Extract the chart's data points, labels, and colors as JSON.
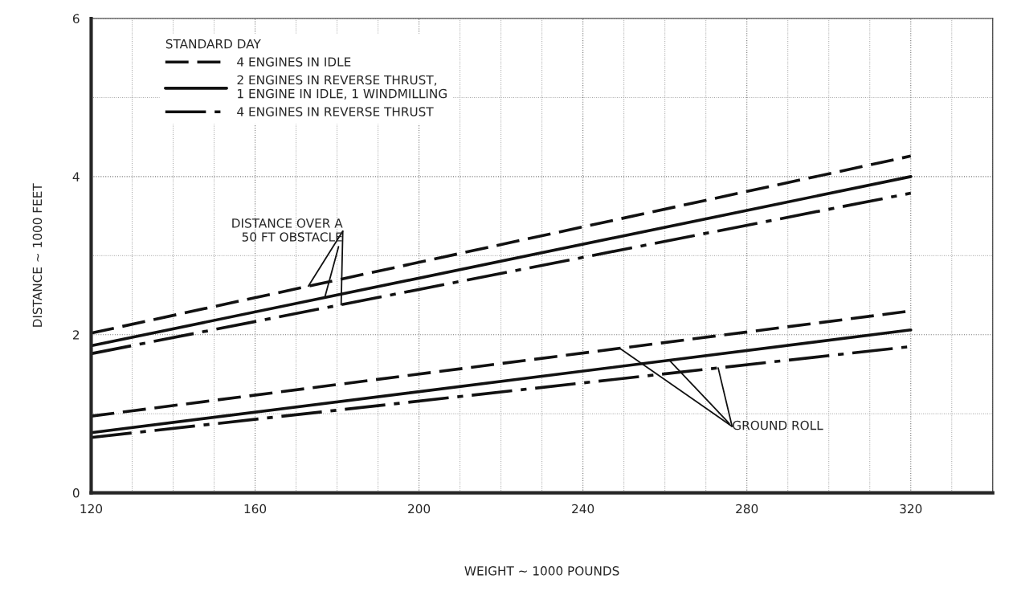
{
  "chart_data": {
    "type": "line",
    "xlabel": "WEIGHT ~ 1000 POUNDS",
    "ylabel": "DISTANCE ~ 1000 FEET",
    "legend_title": "STANDARD DAY",
    "xlim": [
      120,
      340
    ],
    "xticks": [
      120,
      160,
      200,
      240,
      280,
      320
    ],
    "ylim": [
      0,
      6
    ],
    "yticks": [
      0,
      2,
      4,
      6
    ],
    "grid": true,
    "legend": "top left",
    "x": [
      120,
      320
    ],
    "series": [
      {
        "name": "4 ENGINES IN IDLE",
        "color": "#111111",
        "line_style": "dashed",
        "values": [
          2.02,
          4.26
        ]
      },
      {
        "name": "2 ENGINES IN REVERSE THRUST,\n1 ENGINE IN IDLE, 1 WINDMILLING",
        "color": "#111111",
        "line_style": "solid",
        "values": [
          1.86,
          4.0
        ]
      },
      {
        "name": "4 ENGINES IN REVERSE THRUST",
        "color": "#111111",
        "line_style": "dashdot",
        "values": [
          1.76,
          3.79
        ]
      },
      {
        "color": "#111111",
        "line_style": "dashed",
        "values": [
          0.97,
          2.3
        ]
      },
      {
        "color": "#111111",
        "line_style": "solid",
        "values": [
          0.76,
          2.06
        ]
      },
      {
        "color": "#111111",
        "line_style": "dashdot",
        "values": [
          0.7,
          1.85
        ]
      }
    ],
    "annotations": [
      {
        "text": "DISTANCE OVER A\n50 FT OBSTACLE",
        "x": 177,
        "y": 2.47
      },
      {
        "text": "GROUND ROLL",
        "x": 261,
        "y": 1.68
      }
    ]
  }
}
